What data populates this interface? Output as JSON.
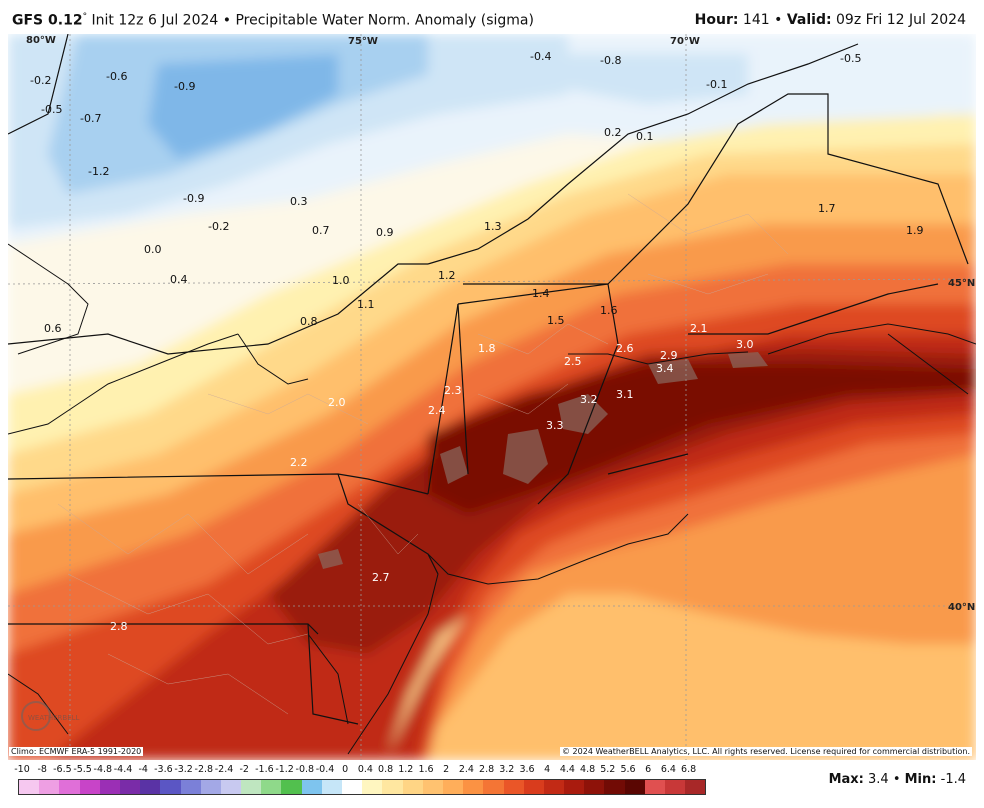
{
  "header": {
    "model": "GFS 0.12",
    "degree_mark": "°",
    "init_text": "Init 12z 6 Jul 2024 • Precipitable Water Norm. Anomaly (sigma)",
    "hour_label": "Hour:",
    "hour_value": "141",
    "valid_label": "Valid:",
    "valid_value": "09z Fri 12 Jul 2024"
  },
  "map": {
    "lon_labels": [
      "80°W",
      "75°W",
      "70°W"
    ],
    "lat_labels": [
      "45°N",
      "40°N"
    ],
    "values": [
      "-0.2",
      "-0.6",
      "-0.9",
      "-0.5",
      "-0.7",
      "-1.2",
      "-0.9",
      "-0.2",
      "0.0",
      "0.3",
      "0.4",
      "0.7",
      "0.9",
      "1.0",
      "0.8",
      "1.1",
      "1.3",
      "1.2",
      "1.4",
      "1.5",
      "1.6",
      "1.8",
      "2.0",
      "2.2",
      "2.3",
      "2.4",
      "2.5",
      "2.6",
      "2.7",
      "2.9",
      "3.0",
      "3.1",
      "3.2",
      "3.3",
      "3.4",
      "1.7",
      "1.9",
      "2.1",
      "2.8",
      "-0.4",
      "-0.8",
      "-0.1",
      "0.2",
      "0.1",
      "0.6",
      "-0.5"
    ]
  },
  "footer": {
    "climo": "Climo: ECMWF ERA-5 1991-2020",
    "copyright": "© 2024 WeatherBELL Analytics, LLC. All rights reserved. License required for commercial distribution.",
    "logo_text": "WEATHERBELL"
  },
  "scale": {
    "ticks": [
      "-10",
      "-8",
      "-6.5",
      "-5.5",
      "-4.8",
      "-4.4",
      "-4",
      "-3.6",
      "-3.2",
      "-2.8",
      "-2.4",
      "-2",
      "-1.6",
      "-1.2",
      "-0.8",
      "-0.4",
      "0",
      "0.4",
      "0.8",
      "1.2",
      "1.6",
      "2",
      "2.4",
      "2.8",
      "3.2",
      "3.6",
      "4",
      "4.4",
      "4.8",
      "5.2",
      "5.6",
      "6",
      "6.4",
      "6.8"
    ],
    "colors": [
      "#f6c8f0",
      "#ee9fe3",
      "#e06fd8",
      "#c844c8",
      "#9b2fb5",
      "#7a2ca8",
      "#5a33a5",
      "#5b56c4",
      "#7b80d8",
      "#a3a8e6",
      "#c8c9f0",
      "#bfe6c0",
      "#8fd98a",
      "#52c04e",
      "#7ec4ee",
      "#c6e6f8",
      "#ffffff",
      "#fff6c0",
      "#ffe7a0",
      "#ffd585",
      "#ffc270",
      "#ffae5a",
      "#fb9243",
      "#f47535",
      "#ea5628",
      "#d93c1d",
      "#c22a15",
      "#a91b0e",
      "#8e1209",
      "#720b05",
      "#5a0602",
      "#e05050",
      "#c83838",
      "#a82828"
    ],
    "scale_values": [
      -10,
      -8,
      -6.5,
      -5.5,
      -4.8,
      -4.4,
      -4,
      -3.6,
      -3.2,
      -2.8,
      -2.4,
      -2,
      -1.6,
      -1.2,
      -0.8,
      -0.4,
      0,
      0.4,
      0.8,
      1.2,
      1.6,
      2,
      2.4,
      2.8,
      3.2,
      3.6,
      4,
      4.4,
      4.8,
      5.2,
      5.6,
      6,
      6.4,
      6.8
    ]
  },
  "stats": {
    "max_label": "Max:",
    "max_value": "3.4",
    "min_label": "Min:",
    "min_value": "-1.4"
  }
}
